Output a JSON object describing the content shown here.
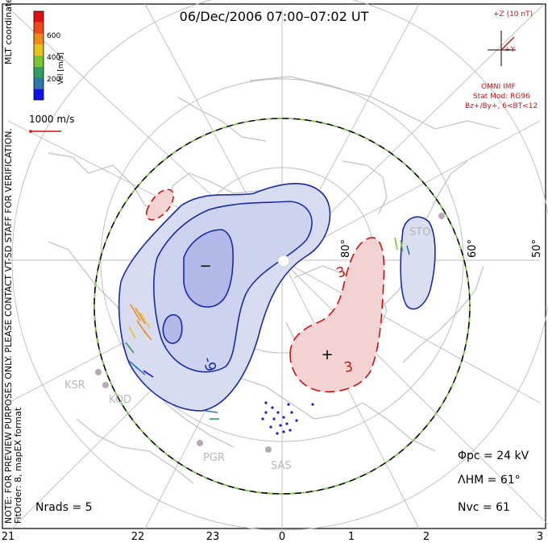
{
  "title": "06/Dec/2006 07:00–07:02 UT",
  "side_note": "NOTE: FOR PREVIEW PURPOSES ONLY. PLEASE CONTACT VT-SD STAFF FOR VERIFICATION.",
  "mlt_label": "MLT coordinates",
  "fit_order": "FitOrder: 8, mapEX format",
  "colorbar": {
    "title": "Vel [m/s]",
    "ticks": [
      "200",
      "400",
      "600"
    ],
    "colors": [
      "#1010ee",
      "#2a7aa8",
      "#2fa060",
      "#7ac52e",
      "#e8c21e",
      "#ef8a1c",
      "#f04818",
      "#e01010"
    ]
  },
  "ref_vector": "1000 m/s",
  "imf": {
    "bz_label": "+Z (10 nT)",
    "by_label": "+Y",
    "source": "OMNI IMF",
    "model": "Stat Mod: RG96",
    "condition": "Bz+/By+, 6<BT<12"
  },
  "lat_labels": [
    "80°",
    "60°",
    "50°"
  ],
  "mlt_ticks": [
    "21",
    "22",
    "23",
    "0",
    "1",
    "2",
    "3"
  ],
  "stations": [
    "KSR",
    "KOD",
    "PGR",
    "SAS",
    "STO"
  ],
  "contour_labels": [
    "-9",
    "3",
    "3"
  ],
  "cell_markers": [
    "−",
    "+"
  ],
  "stats": {
    "phi_pc": "Φpc = 24 kV",
    "lambda_hm": "ΛHM = 61°",
    "n_vc": "Nvc = 61",
    "n_rads": "Nrads = 5"
  },
  "colors": {
    "negative_contour": "#1a2aa8",
    "positive_contour": "#cc1111",
    "negative_fill": "#d8dcf0",
    "positive_fill": "#f2d2d2",
    "coastline": "#c8c8c8",
    "grid": "#bbbbbb"
  }
}
